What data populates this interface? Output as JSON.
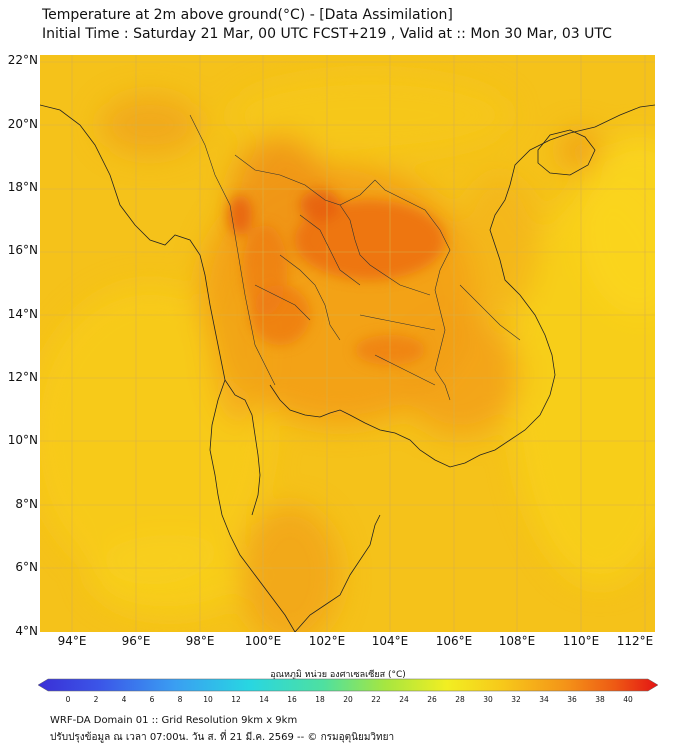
{
  "header": {
    "title_line1": "Temperature at 2m above ground(°C) - [Data Assimilation]",
    "title_line2": "Initial Time : Saturday 21 Mar, 00 UTC FCST+219 , Valid at :: Mon 30 Mar, 03 UTC"
  },
  "map": {
    "lat_labels": [
      "22°N",
      "20°N",
      "18°N",
      "16°N",
      "14°N",
      "12°N",
      "10°N",
      "8°N",
      "6°N",
      "4°N"
    ],
    "lon_labels": [
      "94°E",
      "96°E",
      "98°E",
      "100°E",
      "102°E",
      "104°E",
      "106°E",
      "108°E",
      "110°E",
      "112°E"
    ],
    "background_color": "#f5c21a",
    "hot_color": "#ec6a12",
    "sea_color": "#f7d31c"
  },
  "colorbar": {
    "caption": "อุณหภูมิ หน่วย องศาเซลเซียส (°C)",
    "ticks": [
      "0",
      "2",
      "4",
      "6",
      "8",
      "10",
      "12",
      "14",
      "16",
      "18",
      "20",
      "22",
      "24",
      "26",
      "28",
      "30",
      "32",
      "34",
      "36",
      "38",
      "40"
    ]
  },
  "footer": {
    "line1": "WRF-DA Domain 01 :: Grid Resolution 9km x 9km",
    "line2": "ปรับปรุงข้อมูล ณ เวลา 07:00น. วัน ส. ที่ 21 มี.ค. 2569 -- © กรมอุตุนิยมวิทยา"
  }
}
